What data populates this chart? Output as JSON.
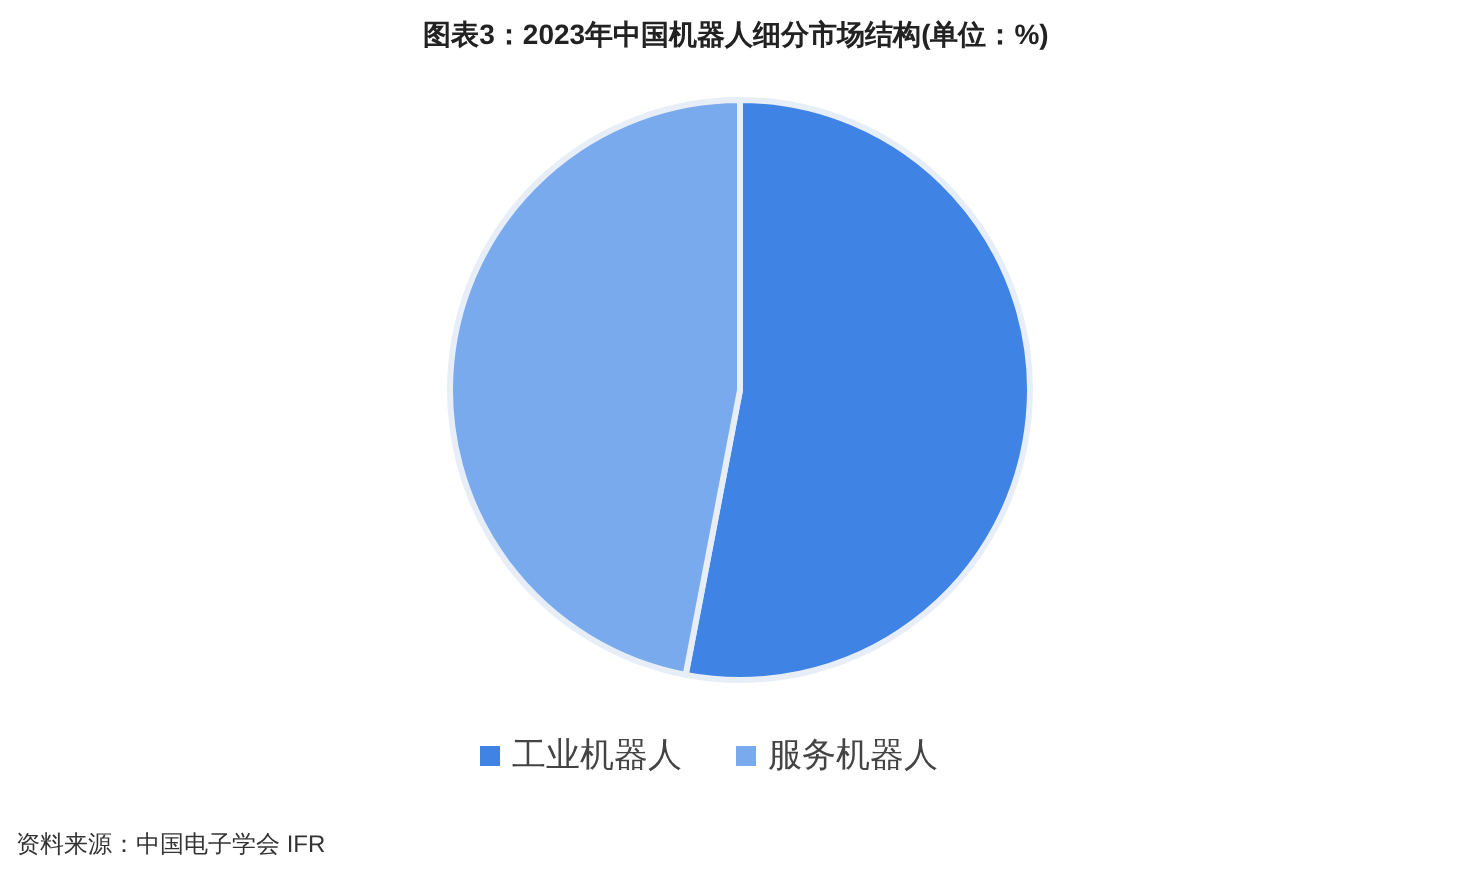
{
  "chart_data": {
    "type": "pie",
    "title": "图表3：2023年中国机器人细分市场结构(单位：%)",
    "categories": [
      "工业机器人",
      "服务机器人"
    ],
    "values": [
      53,
      47
    ],
    "colors": [
      "#3f84e5",
      "#7aaaee"
    ],
    "legend": "bottom",
    "annotations": [
      "资料来源：中国电子学会 IFR"
    ]
  }
}
